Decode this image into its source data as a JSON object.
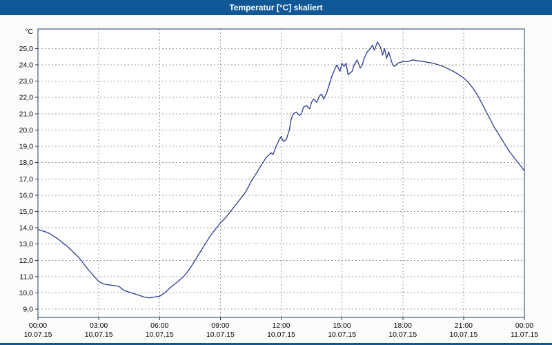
{
  "window": {
    "title": "Temperatur [°C] skaliert"
  },
  "colors": {
    "title_bar_bg": "#0F5795",
    "title_fg": "#FFFFFF",
    "frame": "#1B3A63",
    "grid": "#999999",
    "line": "#2B3990",
    "plot_bg": "#FFFFFF",
    "page_bg": "#FCFCFC",
    "accent_strip": "#0F5795",
    "tick_label": "#000000"
  },
  "chart_data": {
    "type": "line",
    "title": "Temperatur [°C] skaliert",
    "ylabel": "°C",
    "ylim": [
      9.0,
      25.0
    ],
    "y_tick_step": 1.0,
    "decimal_separator": ",",
    "grid": true,
    "legend_position": "none",
    "x_axis": {
      "hours": [
        0,
        3,
        6,
        9,
        12,
        15,
        18,
        21,
        24
      ],
      "times": [
        "00:00",
        "03:00",
        "06:00",
        "09:00",
        "12:00",
        "15:00",
        "18:00",
        "21:00",
        "00:00"
      ],
      "dates": [
        "10.07.15",
        "10.07.15",
        "10.07.15",
        "10.07.15",
        "10.07.15",
        "10.07.15",
        "10.07.15",
        "10.07.15",
        "11.07.15"
      ]
    },
    "series": [
      {
        "name": "Temperatur [°C]",
        "x_hours": [
          0,
          0.5,
          1,
          1.5,
          2,
          2.5,
          3,
          3.25,
          3.5,
          3.75,
          4,
          4.25,
          4.5,
          4.75,
          5,
          5.25,
          5.5,
          5.75,
          6,
          6.25,
          6.5,
          6.75,
          7,
          7.25,
          7.5,
          7.75,
          8,
          8.25,
          8.5,
          8.75,
          9,
          9.25,
          9.5,
          9.75,
          10,
          10.25,
          10.5,
          10.75,
          11,
          11.25,
          11.5,
          11.6,
          11.75,
          11.9,
          12,
          12.1,
          12.25,
          12.4,
          12.5,
          12.6,
          12.75,
          12.9,
          13,
          13.1,
          13.25,
          13.4,
          13.5,
          13.6,
          13.75,
          13.9,
          14,
          14.1,
          14.25,
          14.4,
          14.5,
          14.6,
          14.75,
          14.9,
          15,
          15.1,
          15.2,
          15.3,
          15.5,
          15.6,
          15.75,
          15.9,
          16,
          16.1,
          16.25,
          16.4,
          16.5,
          16.6,
          16.75,
          16.9,
          17,
          17.1,
          17.2,
          17.3,
          17.5,
          17.6,
          17.75,
          18,
          18.25,
          18.5,
          18.75,
          19,
          19.5,
          20,
          20.5,
          21,
          21.25,
          21.5,
          21.75,
          22,
          22.25,
          22.5,
          22.75,
          23,
          23.25,
          23.5,
          23.75,
          24
        ],
        "values_c": [
          13.9,
          13.7,
          13.3,
          12.8,
          12.2,
          11.4,
          10.7,
          10.55,
          10.5,
          10.45,
          10.4,
          10.15,
          10.05,
          9.95,
          9.85,
          9.75,
          9.7,
          9.75,
          9.8,
          10.0,
          10.3,
          10.55,
          10.8,
          11.1,
          11.5,
          12.0,
          12.5,
          13.0,
          13.5,
          13.9,
          14.3,
          14.6,
          15.0,
          15.4,
          15.8,
          16.2,
          16.8,
          17.3,
          17.8,
          18.3,
          18.6,
          18.5,
          19.0,
          19.4,
          19.6,
          19.3,
          19.4,
          20.0,
          20.7,
          21.0,
          21.1,
          20.9,
          21.0,
          21.4,
          21.5,
          21.3,
          21.7,
          21.9,
          21.7,
          22.1,
          22.2,
          21.9,
          22.3,
          22.9,
          23.3,
          23.6,
          24.0,
          23.6,
          24.1,
          23.9,
          24.1,
          23.4,
          23.6,
          24.0,
          24.3,
          23.8,
          24.0,
          24.4,
          24.8,
          25.0,
          25.2,
          24.9,
          25.4,
          25.1,
          24.6,
          25.0,
          24.4,
          24.8,
          24.0,
          23.9,
          24.1,
          24.2,
          24.2,
          24.3,
          24.25,
          24.2,
          24.1,
          23.9,
          23.6,
          23.2,
          22.9,
          22.5,
          22.0,
          21.4,
          20.8,
          20.2,
          19.7,
          19.2,
          18.7,
          18.3,
          17.9,
          17.5
        ]
      }
    ]
  }
}
